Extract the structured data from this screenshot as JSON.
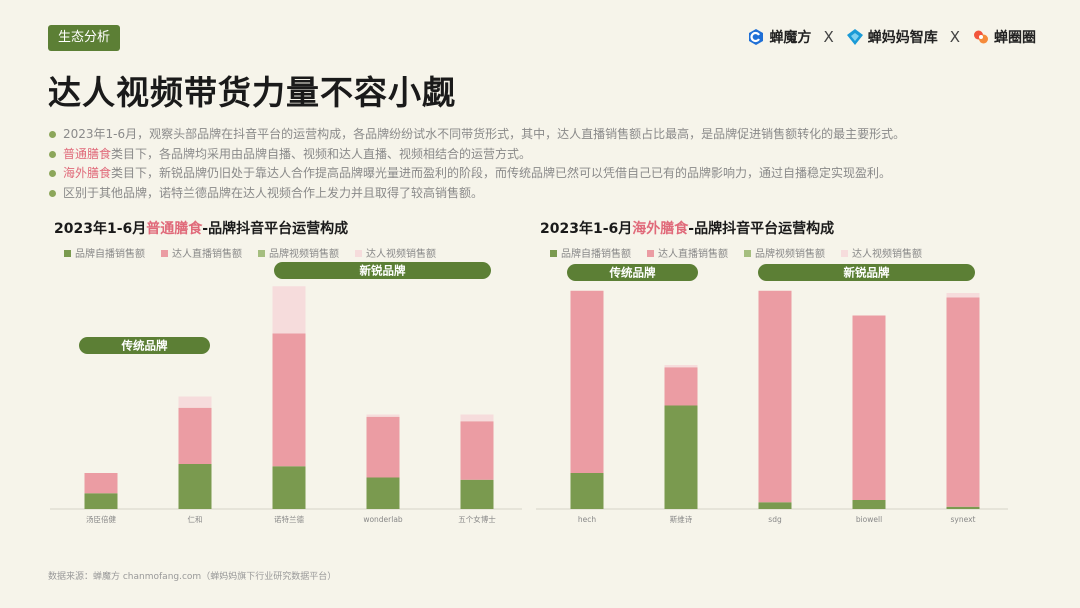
{
  "tag": "生态分析",
  "logos": [
    {
      "name": "蝉魔方"
    },
    {
      "name": "蝉妈妈智库"
    },
    {
      "name": "蝉圈圈"
    }
  ],
  "logo_sep": "X",
  "title": "达人视频带货力量不容小觑",
  "bullets": [
    {
      "pre": "",
      "hl": "",
      "post": "2023年1-6月，观察头部品牌在抖音平台的运营构成，各品牌纷纷试水不同带货形式，其中，达人直播销售额占比最高，是品牌促进销售额转化的最主要形式。"
    },
    {
      "pre": "",
      "hl": "普通膳食",
      "post": "类目下，各品牌均采用由品牌自播、视频和达人直播、视频相结合的运营方式。"
    },
    {
      "pre": "",
      "hl": "海外膳食",
      "post": "类目下，新锐品牌仍旧处于靠达人合作提高品牌曝光量进而盈利的阶段，而传统品牌已然可以凭借自己已有的品牌影响力，通过自播稳定实现盈利。"
    },
    {
      "pre": "区别于其他品牌，诺特兰德品牌在达人视频合作上发力并且取得了较高销售额。",
      "hl": "",
      "post": ""
    }
  ],
  "colors": {
    "self_live": "#7a9a4f",
    "kol_live": "#eb9ca3",
    "brand_video": "#a5be7f",
    "kol_video": "#f6dcdc",
    "accent": "#5c7f35",
    "highlight": "#e06a7a"
  },
  "source": "数据来源：蝉魔方 chanmofang.com（蝉妈妈旗下行业研究数据平台）",
  "chart_data": [
    {
      "type": "bar",
      "stacked": true,
      "title_pre": "2023年1-6月",
      "title_hl": "普通膳食",
      "title_post": "-品牌抖音平台运营构成",
      "legend": [
        "品牌自播销售额",
        "达人直播销售额",
        "品牌视频销售额",
        "达人视频销售额"
      ],
      "categories": [
        "汤臣倍健",
        "仁和",
        "诺特兰德",
        "wonderlab",
        "五个女博士"
      ],
      "groups": [
        {
          "label": "传统品牌"
        },
        {
          "label": "新锐品牌"
        }
      ],
      "series": [
        {
          "name": "品牌自播销售额",
          "values": [
            7,
            20,
            19,
            14,
            13
          ]
        },
        {
          "name": "达人直播销售额",
          "values": [
            9,
            25,
            59,
            27,
            26
          ]
        },
        {
          "name": "品牌视频销售额",
          "values": [
            0,
            0,
            0,
            0,
            0
          ]
        },
        {
          "name": "达人视频销售额",
          "values": [
            0,
            5,
            21,
            1,
            3
          ]
        }
      ],
      "ylim": [
        0,
        100
      ]
    },
    {
      "type": "bar",
      "stacked": true,
      "title_pre": "2023年1-6月",
      "title_hl": "海外膳食",
      "title_post": "-品牌抖音平台运营构成",
      "legend": [
        "品牌自播销售额",
        "达人直播销售额",
        "品牌视频销售额",
        "达人视频销售额"
      ],
      "categories": [
        "hech",
        "斯维诗",
        "sdg",
        "biowell",
        "synext"
      ],
      "groups": [
        {
          "label": "传统品牌"
        },
        {
          "label": "新锐品牌"
        }
      ],
      "series": [
        {
          "name": "品牌自播销售额",
          "values": [
            16,
            46,
            3,
            4,
            1
          ]
        },
        {
          "name": "达人直播销售额",
          "values": [
            81,
            17,
            94,
            82,
            93
          ]
        },
        {
          "name": "品牌视频销售额",
          "values": [
            0,
            0,
            0,
            0,
            0
          ]
        },
        {
          "name": "达人视频销售额",
          "values": [
            0,
            1,
            0,
            0,
            2
          ]
        }
      ],
      "ylim": [
        0,
        100
      ]
    }
  ]
}
